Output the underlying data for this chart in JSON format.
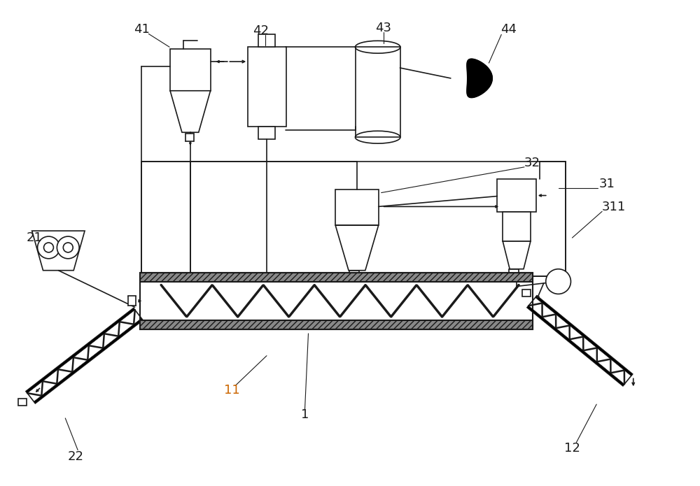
{
  "background_color": "#ffffff",
  "line_color": "#1a1a1a",
  "label_color": "#1a1a1a",
  "orange_color": "#cc6600",
  "figsize": [
    10.0,
    6.95
  ],
  "dpi": 100
}
